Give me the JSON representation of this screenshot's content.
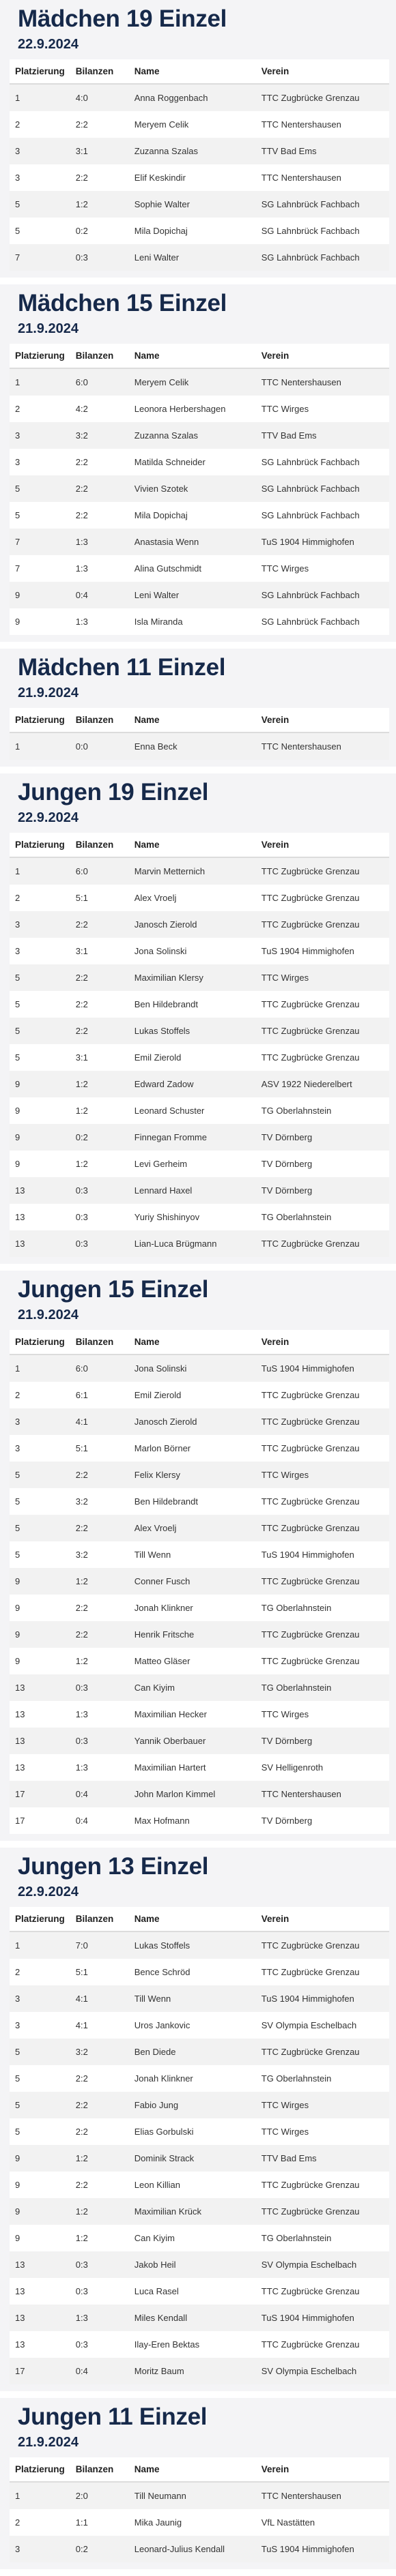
{
  "headers": {
    "place": "Platzierung",
    "balance": "Bilanzen",
    "name": "Name",
    "club": "Verein"
  },
  "sections": [
    {
      "title": "Mädchen 19 Einzel",
      "date": "22.9.2024",
      "rows": [
        [
          "1",
          "4:0",
          "Anna Roggenbach",
          "TTC Zugbrücke Grenzau"
        ],
        [
          "2",
          "2:2",
          "Meryem Celik",
          "TTC Nentershausen"
        ],
        [
          "3",
          "3:1",
          "Zuzanna Szalas",
          "TTV Bad Ems"
        ],
        [
          "3",
          "2:2",
          "Elif Keskindir",
          "TTC Nentershausen"
        ],
        [
          "5",
          "1:2",
          "Sophie Walter",
          "SG Lahnbrück Fachbach"
        ],
        [
          "5",
          "0:2",
          "Mila Dopichaj",
          "SG Lahnbrück Fachbach"
        ],
        [
          "7",
          "0:3",
          "Leni Walter",
          "SG Lahnbrück Fachbach"
        ]
      ]
    },
    {
      "title": "Mädchen 15 Einzel",
      "date": "21.9.2024",
      "rows": [
        [
          "1",
          "6:0",
          "Meryem Celik",
          "TTC Nentershausen"
        ],
        [
          "2",
          "4:2",
          "Leonora Herbershagen",
          "TTC Wirges"
        ],
        [
          "3",
          "3:2",
          "Zuzanna Szalas",
          "TTV Bad Ems"
        ],
        [
          "3",
          "2:2",
          "Matilda Schneider",
          "SG Lahnbrück Fachbach"
        ],
        [
          "5",
          "2:2",
          "Vivien Szotek",
          "SG Lahnbrück Fachbach"
        ],
        [
          "5",
          "2:2",
          "Mila Dopichaj",
          "SG Lahnbrück Fachbach"
        ],
        [
          "7",
          "1:3",
          "Anastasia Wenn",
          "TuS 1904 Himmighofen"
        ],
        [
          "7",
          "1:3",
          "Alina Gutschmidt",
          "TTC Wirges"
        ],
        [
          "9",
          "0:4",
          "Leni Walter",
          "SG Lahnbrück Fachbach"
        ],
        [
          "9",
          "1:3",
          "Isla Miranda",
          "SG Lahnbrück Fachbach"
        ]
      ]
    },
    {
      "title": "Mädchen 11 Einzel",
      "date": "21.9.2024",
      "rows": [
        [
          "1",
          "0:0",
          "Enna Beck",
          "TTC Nentershausen"
        ]
      ]
    },
    {
      "title": "Jungen 19 Einzel",
      "date": "22.9.2024",
      "rows": [
        [
          "1",
          "6:0",
          "Marvin Metternich",
          "TTC Zugbrücke Grenzau"
        ],
        [
          "2",
          "5:1",
          "Alex Vroelj",
          "TTC Zugbrücke Grenzau"
        ],
        [
          "3",
          "2:2",
          "Janosch Zierold",
          "TTC Zugbrücke Grenzau"
        ],
        [
          "3",
          "3:1",
          "Jona Solinski",
          "TuS 1904 Himmighofen"
        ],
        [
          "5",
          "2:2",
          "Maximilian Klersy",
          "TTC Wirges"
        ],
        [
          "5",
          "2:2",
          "Ben Hildebrandt",
          "TTC Zugbrücke Grenzau"
        ],
        [
          "5",
          "2:2",
          "Lukas Stoffels",
          "TTC Zugbrücke Grenzau"
        ],
        [
          "5",
          "3:1",
          "Emil Zierold",
          "TTC Zugbrücke Grenzau"
        ],
        [
          "9",
          "1:2",
          "Edward Zadow",
          "ASV 1922 Niederelbert"
        ],
        [
          "9",
          "1:2",
          "Leonard Schuster",
          "TG Oberlahnstein"
        ],
        [
          "9",
          "0:2",
          "Finnegan Fromme",
          "TV Dörnberg"
        ],
        [
          "9",
          "1:2",
          "Levi Gerheim",
          "TV Dörnberg"
        ],
        [
          "13",
          "0:3",
          "Lennard Haxel",
          "TV Dörnberg"
        ],
        [
          "13",
          "0:3",
          "Yuriy Shishinyov",
          "TG Oberlahnstein"
        ],
        [
          "13",
          "0:3",
          "Lian-Luca Brügmann",
          "TTC Zugbrücke Grenzau"
        ]
      ]
    },
    {
      "title": "Jungen 15 Einzel",
      "date": "21.9.2024",
      "rows": [
        [
          "1",
          "6:0",
          "Jona Solinski",
          "TuS 1904 Himmighofen"
        ],
        [
          "2",
          "6:1",
          "Emil Zierold",
          "TTC Zugbrücke Grenzau"
        ],
        [
          "3",
          "4:1",
          "Janosch Zierold",
          "TTC Zugbrücke Grenzau"
        ],
        [
          "3",
          "5:1",
          "Marlon Börner",
          "TTC Zugbrücke Grenzau"
        ],
        [
          "5",
          "2:2",
          "Felix Klersy",
          "TTC Wirges"
        ],
        [
          "5",
          "3:2",
          "Ben Hildebrandt",
          "TTC Zugbrücke Grenzau"
        ],
        [
          "5",
          "2:2",
          "Alex Vroelj",
          "TTC Zugbrücke Grenzau"
        ],
        [
          "5",
          "3:2",
          "Till Wenn",
          "TuS 1904 Himmighofen"
        ],
        [
          "9",
          "1:2",
          "Conner Fusch",
          "TTC Zugbrücke Grenzau"
        ],
        [
          "9",
          "2:2",
          "Jonah Klinkner",
          "TG Oberlahnstein"
        ],
        [
          "9",
          "2:2",
          "Henrik Fritsche",
          "TTC Zugbrücke Grenzau"
        ],
        [
          "9",
          "1:2",
          "Matteo Gläser",
          "TTC Zugbrücke Grenzau"
        ],
        [
          "13",
          "0:3",
          "Can Kiyim",
          "TG Oberlahnstein"
        ],
        [
          "13",
          "1:3",
          "Maximilian Hecker",
          "TTC Wirges"
        ],
        [
          "13",
          "0:3",
          "Yannik Oberbauer",
          "TV Dörnberg"
        ],
        [
          "13",
          "1:3",
          "Maximilian Hartert",
          "SV Helligenroth"
        ],
        [
          "17",
          "0:4",
          "John Marlon Kimmel",
          "TTC Nentershausen"
        ],
        [
          "17",
          "0:4",
          "Max Hofmann",
          "TV Dörnberg"
        ]
      ]
    },
    {
      "title": "Jungen 13 Einzel",
      "date": "22.9.2024",
      "rows": [
        [
          "1",
          "7:0",
          "Lukas Stoffels",
          "TTC Zugbrücke Grenzau"
        ],
        [
          "2",
          "5:1",
          "Bence Schröd",
          "TTC Zugbrücke Grenzau"
        ],
        [
          "3",
          "4:1",
          "Till Wenn",
          "TuS 1904 Himmighofen"
        ],
        [
          "3",
          "4:1",
          "Uros Jankovic",
          "SV Olympia Eschelbach"
        ],
        [
          "5",
          "3:2",
          "Ben Diede",
          "TTC Zugbrücke Grenzau"
        ],
        [
          "5",
          "2:2",
          "Jonah Klinkner",
          "TG Oberlahnstein"
        ],
        [
          "5",
          "2:2",
          "Fabio Jung",
          "TTC Wirges"
        ],
        [
          "5",
          "2:2",
          "Elias Gorbulski",
          "TTC Wirges"
        ],
        [
          "9",
          "1:2",
          "Dominik Strack",
          "TTV Bad Ems"
        ],
        [
          "9",
          "2:2",
          "Leon Killian",
          "TTC Zugbrücke Grenzau"
        ],
        [
          "9",
          "1:2",
          "Maximilian Krück",
          "TTC Zugbrücke Grenzau"
        ],
        [
          "9",
          "1:2",
          "Can Kiyim",
          "TG Oberlahnstein"
        ],
        [
          "13",
          "0:3",
          "Jakob Heil",
          "SV Olympia Eschelbach"
        ],
        [
          "13",
          "0:3",
          "Luca Rasel",
          "TTC Zugbrücke Grenzau"
        ],
        [
          "13",
          "1:3",
          "Miles Kendall",
          "TuS 1904 Himmighofen"
        ],
        [
          "13",
          "0:3",
          "Ilay-Eren Bektas",
          "TTC Zugbrücke Grenzau"
        ],
        [
          "17",
          "0:4",
          "Moritz Baum",
          "SV Olympia Eschelbach"
        ]
      ]
    },
    {
      "title": "Jungen 11 Einzel",
      "date": "21.9.2024",
      "rows": [
        [
          "1",
          "2:0",
          "Till Neumann",
          "TTC Nentershausen"
        ],
        [
          "2",
          "1:1",
          "Mika Jaunig",
          "VfL Nastätten"
        ],
        [
          "3",
          "0:2",
          "Leonard-Julius Kendall",
          "TuS 1904 Himmighofen"
        ]
      ]
    }
  ]
}
